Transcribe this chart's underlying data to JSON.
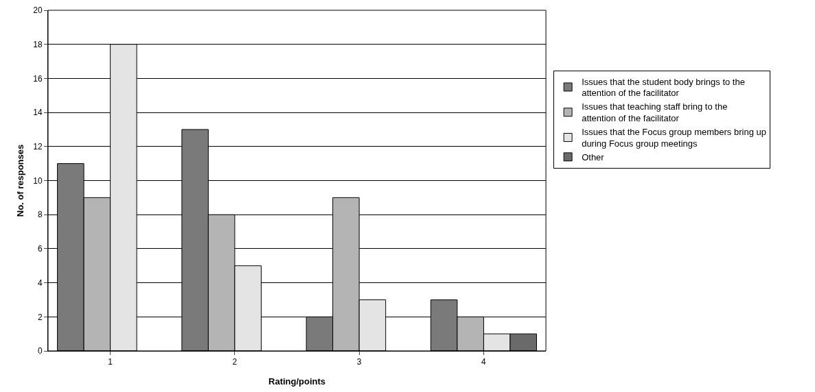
{
  "chart_data": {
    "type": "bar",
    "xlabel": "Rating/points",
    "ylabel": "No. of responses",
    "categories": [
      "1",
      "2",
      "3",
      "4"
    ],
    "series": [
      {
        "name": "Issues that the student body brings to the attention of the facilitator",
        "color": "#7a7a7a",
        "values": [
          11,
          13,
          2,
          3
        ]
      },
      {
        "name": "Issues that teaching staff bring to the attention of the facilitator",
        "color": "#b4b4b4",
        "values": [
          9,
          8,
          9,
          2
        ]
      },
      {
        "name": "Issues that the Focus group members bring up during Focus group meetings",
        "color": "#e4e4e4",
        "values": [
          18,
          5,
          3,
          1
        ]
      },
      {
        "name": "Other",
        "color": "#6a6a6a",
        "values": [
          null,
          null,
          null,
          1
        ]
      }
    ],
    "ylim": [
      0,
      20
    ],
    "yticks": [
      0,
      2,
      4,
      6,
      8,
      10,
      12,
      14,
      16,
      18,
      20
    ],
    "grid": "y",
    "legend": "right"
  }
}
